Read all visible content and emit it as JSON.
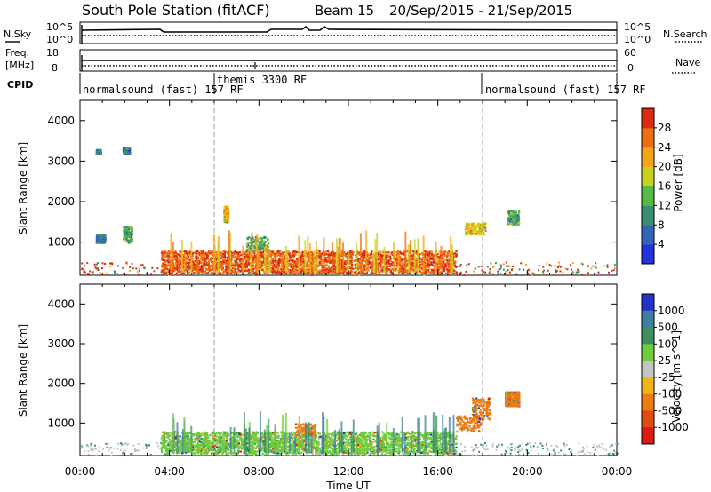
{
  "header": {
    "station": "South Pole Station (fitACF)",
    "beam": "Beam 15",
    "date_range": "20/Sep/2015 - 21/Sep/2015"
  },
  "top_panels": {
    "nsky_label": "N.Sky",
    "nsky_ticks": [
      "10^5",
      "10^0"
    ],
    "nsearch_label": "N.Search",
    "nsearch_ticks": [
      "10^5",
      "10^0"
    ],
    "freq_label_1": "Freq.",
    "freq_label_2": "[MHz]",
    "freq_ticks": [
      "18",
      "8"
    ],
    "nave_label": "Nave",
    "nave_ticks": [
      "60",
      "0"
    ],
    "cpid_label": "CPID",
    "cpid_segments": [
      {
        "label": "normalsound (fast) 157 RF",
        "start_hour": 0
      },
      {
        "label": "themis 3300 RF",
        "start_hour": 6
      },
      {
        "label": "normalsound (fast) 157 RF",
        "start_hour": 18
      }
    ]
  },
  "chart_data": [
    {
      "type": "heatmap",
      "name": "power",
      "xlabel": "Time UT",
      "ylabel": "Slant Range [km]",
      "x_ticks": [
        "00:00",
        "04:00",
        "08:00",
        "12:00",
        "16:00",
        "20:00",
        "00:00"
      ],
      "xlim_hours": [
        0,
        24
      ],
      "ylim": [
        180,
        4500
      ],
      "y_ticks": [
        1000,
        2000,
        3000,
        4000
      ],
      "colorbar": {
        "label": "Power [dB]",
        "ticks": [
          4,
          8,
          12,
          16,
          20,
          24,
          28
        ],
        "range": [
          0,
          32
        ],
        "colors": [
          "#2233dd",
          "#3366bb",
          "#3b8f70",
          "#55bb44",
          "#ccd11e",
          "#f5a515",
          "#ee6e12",
          "#dd2a10"
        ]
      },
      "events": [
        {
          "x": [
            0.7,
            1.1
          ],
          "y": [
            1000,
            1200
          ],
          "level": 8
        },
        {
          "x": [
            0.7,
            0.9
          ],
          "y": [
            3200,
            3300
          ],
          "level": 8
        },
        {
          "x": [
            1.9,
            2.3
          ],
          "y": [
            1000,
            1400
          ],
          "level": 12
        },
        {
          "x": [
            1.9,
            2.2
          ],
          "y": [
            3200,
            3350
          ],
          "level": 8
        },
        {
          "x": [
            6.4,
            6.6
          ],
          "y": [
            1500,
            1900
          ],
          "level": 20
        },
        {
          "x": [
            7.4,
            8.4
          ],
          "y": [
            800,
            1150
          ],
          "level": 12
        },
        {
          "x": [
            17.2,
            18.1
          ],
          "y": [
            1200,
            1500
          ],
          "level": 20
        },
        {
          "x": [
            19.1,
            19.6
          ],
          "y": [
            1450,
            1800
          ],
          "level": 12
        },
        {
          "x": [
            3.6,
            16.8
          ],
          "y": [
            250,
            800
          ],
          "level": 28
        }
      ]
    },
    {
      "type": "heatmap",
      "name": "velocity",
      "xlabel": "Time UT",
      "ylabel": "Slant Range [km]",
      "x_ticks": [
        "00:00",
        "04:00",
        "08:00",
        "12:00",
        "16:00",
        "20:00",
        "00:00"
      ],
      "xlim_hours": [
        0,
        24
      ],
      "ylim": [
        180,
        4500
      ],
      "y_ticks": [
        1000,
        2000,
        3000,
        4000
      ],
      "colorbar": {
        "label": "Velocity [m s^-1]",
        "ticks": [
          "1000",
          "500",
          "100",
          "25",
          "-25",
          "-100",
          "-500",
          "-1000"
        ],
        "colors": [
          "#2233cc",
          "#3f7fa0",
          "#3b8f60",
          "#6fcc3a",
          "#c6c6c6",
          "#f2b418",
          "#ee7c12",
          "#e04b10",
          "#dd1a10"
        ]
      },
      "events": [
        {
          "x": [
            3.6,
            16.8
          ],
          "y": [
            250,
            800
          ],
          "level": "100"
        },
        {
          "x": [
            9.6,
            10.5
          ],
          "y": [
            700,
            1000
          ],
          "level": "-100"
        },
        {
          "x": [
            16.8,
            17.9
          ],
          "y": [
            800,
            1200
          ],
          "level": "-100"
        },
        {
          "x": [
            17.5,
            18.3
          ],
          "y": [
            1100,
            1650
          ],
          "level": "-100"
        },
        {
          "x": [
            19.0,
            19.6
          ],
          "y": [
            1450,
            1800
          ],
          "level": "-100"
        }
      ]
    }
  ]
}
